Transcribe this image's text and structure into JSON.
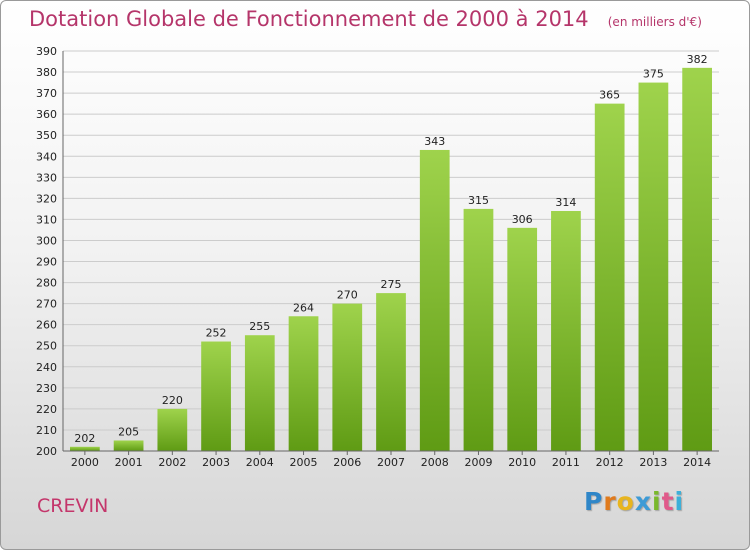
{
  "chart_data": {
    "type": "bar",
    "title": "Dotation Globale de Fonctionnement de 2000 à 2014",
    "subtitle": "(en milliers d'€)",
    "categories": [
      "2000",
      "2001",
      "2002",
      "2003",
      "2004",
      "2005",
      "2006",
      "2007",
      "2008",
      "2009",
      "2010",
      "2011",
      "2012",
      "2013",
      "2014"
    ],
    "values": [
      202,
      205,
      220,
      252,
      255,
      264,
      270,
      275,
      343,
      315,
      306,
      314,
      365,
      375,
      382
    ],
    "ylim": [
      200,
      390
    ],
    "ytick_step": 10,
    "grid": true,
    "bar_color_top": "#9fd34c",
    "bar_color_bottom": "#5f9b14"
  },
  "commune": "CREVIN",
  "brand": {
    "letters": [
      "P",
      "r",
      "o",
      "x",
      "i",
      "t",
      "i"
    ],
    "colors": [
      "#2f86c8",
      "#e07a1c",
      "#e8b51f",
      "#3d9bd6",
      "#7ab82c",
      "#e05a8a",
      "#3bb0d9"
    ]
  }
}
